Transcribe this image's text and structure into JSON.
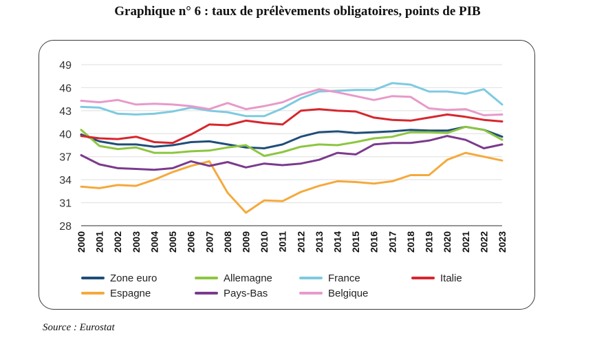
{
  "title": "Graphique n° 6 : taux de prélèvements obligatoires, points de PIB",
  "source": "Source : Eurostat",
  "chart_data": {
    "type": "line",
    "title": "Graphique n° 6 : taux de prélèvements obligatoires, points de PIB",
    "xlabel": "",
    "ylabel": "",
    "ylim": [
      28,
      49
    ],
    "yticks": [
      28,
      31,
      34,
      37,
      40,
      43,
      46,
      49
    ],
    "grid": "horizontal",
    "legend_position": "bottom",
    "x": [
      "2000",
      "2001",
      "2002",
      "2003",
      "2004",
      "2005",
      "2006",
      "2007",
      "2008",
      "2009",
      "2010",
      "2011",
      "2012",
      "2013",
      "2014",
      "2015",
      "2016",
      "2017",
      "2018",
      "2019",
      "2020",
      "2021",
      "2022",
      "2023"
    ],
    "series": [
      {
        "name": "Zone euro",
        "color": "#1f4e79",
        "values": [
          39.9,
          39.0,
          38.6,
          38.6,
          38.3,
          38.5,
          38.9,
          39.0,
          38.6,
          38.2,
          38.1,
          38.6,
          39.6,
          40.2,
          40.3,
          40.1,
          40.2,
          40.3,
          40.5,
          40.4,
          40.4,
          40.9,
          40.5,
          39.6
        ]
      },
      {
        "name": "Allemagne",
        "color": "#8cc63f",
        "values": [
          40.5,
          38.4,
          38.0,
          38.2,
          37.5,
          37.5,
          37.7,
          37.8,
          38.2,
          38.5,
          37.1,
          37.6,
          38.3,
          38.6,
          38.5,
          38.9,
          39.4,
          39.6,
          40.2,
          40.2,
          40.1,
          40.9,
          40.5,
          39.2
        ]
      },
      {
        "name": "France",
        "color": "#7ecae0",
        "values": [
          43.5,
          43.4,
          42.6,
          42.5,
          42.6,
          42.9,
          43.4,
          43.0,
          42.8,
          42.3,
          42.3,
          43.3,
          44.6,
          45.5,
          45.6,
          45.7,
          45.7,
          46.6,
          46.4,
          45.5,
          45.5,
          45.2,
          45.8,
          43.8
        ]
      },
      {
        "name": "Italie",
        "color": "#d7262e",
        "values": [
          39.7,
          39.4,
          39.3,
          39.6,
          38.9,
          38.8,
          39.9,
          41.2,
          41.1,
          41.7,
          41.4,
          41.2,
          43.0,
          43.2,
          43.0,
          42.9,
          42.1,
          41.8,
          41.7,
          42.1,
          42.5,
          42.2,
          41.8,
          41.6
        ]
      },
      {
        "name": "Espagne",
        "color": "#f5a93b",
        "values": [
          33.1,
          32.9,
          33.3,
          33.2,
          34.0,
          35.0,
          35.8,
          36.4,
          32.3,
          29.7,
          31.3,
          31.2,
          32.4,
          33.2,
          33.8,
          33.7,
          33.5,
          33.8,
          34.6,
          34.6,
          36.6,
          37.5,
          37.0,
          36.5
        ]
      },
      {
        "name": "Pays-Bas",
        "color": "#7b3a8c",
        "values": [
          37.2,
          36.0,
          35.5,
          35.4,
          35.3,
          35.5,
          36.4,
          35.8,
          36.3,
          35.6,
          36.1,
          35.9,
          36.1,
          36.6,
          37.5,
          37.3,
          38.6,
          38.8,
          38.8,
          39.1,
          39.7,
          39.2,
          38.1,
          38.6
        ]
      },
      {
        "name": "Belgique",
        "color": "#e79ac9",
        "values": [
          44.3,
          44.1,
          44.4,
          43.8,
          43.9,
          43.8,
          43.6,
          43.2,
          44.0,
          43.2,
          43.6,
          44.1,
          45.1,
          45.8,
          45.4,
          44.9,
          44.4,
          44.9,
          44.8,
          43.3,
          43.1,
          43.2,
          42.4,
          42.5
        ]
      }
    ]
  }
}
